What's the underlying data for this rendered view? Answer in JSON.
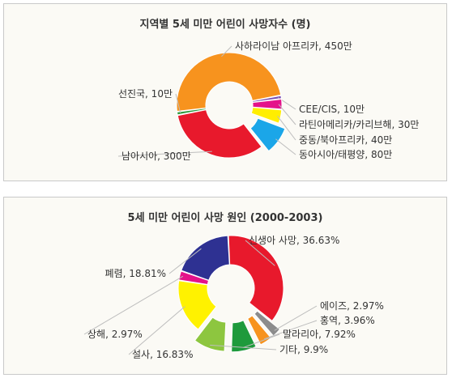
{
  "chart_data": [
    {
      "type": "pie",
      "title": "지역별 5세 미만 어린이 사망자수 (명)",
      "slices": [
        {
          "label": "사하라이남 아프리카, 450만",
          "value": 450,
          "color": "#f7931e",
          "explode": false
        },
        {
          "label": "CEE/CIS, 10만",
          "value": 10,
          "color": "#7a4fb6",
          "explode": false
        },
        {
          "label": "라틴아메리카/카리브해, 30만",
          "value": 30,
          "color": "#e4128a",
          "explode": false
        },
        {
          "label": "중동/북아프리카, 40만",
          "value": 40,
          "color": "#ffee00",
          "explode": false
        },
        {
          "label": "동아시아/태평양, 80만",
          "value": 80,
          "color": "#1ba6e8",
          "explode": true
        },
        {
          "label": "남아시아, 300만",
          "value": 300,
          "color": "#e8192c",
          "explode": false
        },
        {
          "label": "선진국, 10만",
          "value": 10,
          "color": "#2e9b3e",
          "explode": false
        }
      ]
    },
    {
      "type": "pie",
      "title": "5세 미만 어린이 사망 원인 (2000-2003)",
      "slices": [
        {
          "label": "신생아 사망, 36.63%",
          "value": 36.63,
          "color": "#e8192c",
          "explode": false
        },
        {
          "label": "에이즈, 2.97%",
          "value": 2.97,
          "color": "#8c8c8c",
          "explode": true
        },
        {
          "label": "홍역, 3.96%",
          "value": 3.96,
          "color": "#f7931e",
          "explode": true
        },
        {
          "label": "말라리아, 7.92%",
          "value": 7.92,
          "color": "#1e9a3c",
          "explode": true
        },
        {
          "label": "기타, 9.9%",
          "value": 9.9,
          "color": "#8dc63f",
          "explode": true
        },
        {
          "label": "설사, 16.83%",
          "value": 16.83,
          "color": "#fff200",
          "explode": false
        },
        {
          "label": "상해, 2.97%",
          "value": 2.97,
          "color": "#e4128a",
          "explode": false
        },
        {
          "label": "폐렴, 18.81%",
          "value": 18.81,
          "color": "#2e3192",
          "explode": false
        }
      ]
    }
  ]
}
